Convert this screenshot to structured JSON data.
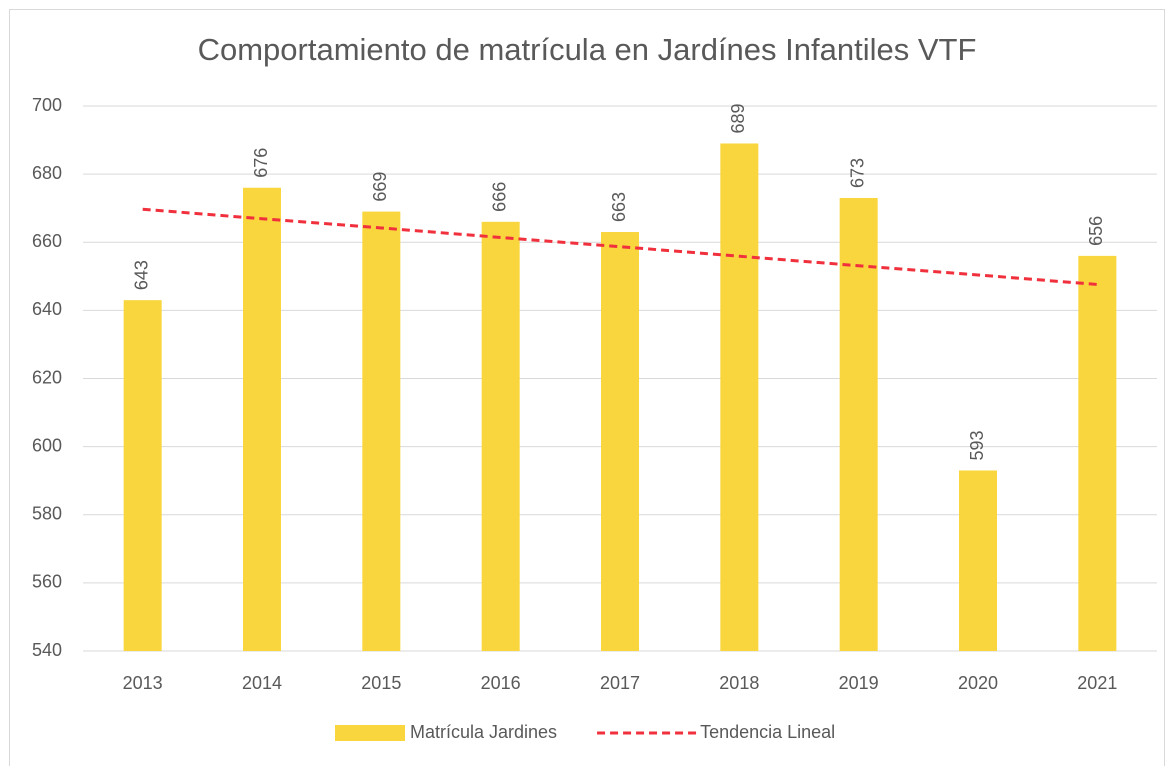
{
  "chart_data": {
    "type": "bar",
    "title": "Comportamiento de matrícula en Jardínes Infantiles VTF",
    "categories": [
      "2013",
      "2014",
      "2015",
      "2016",
      "2017",
      "2018",
      "2019",
      "2020",
      "2021"
    ],
    "series": [
      {
        "name": "Matrícula Jardines",
        "type": "bar",
        "color": "#f9d63d",
        "values": [
          643,
          676,
          669,
          666,
          663,
          689,
          673,
          593,
          656
        ]
      },
      {
        "name": "Tendencia Lineal",
        "type": "line",
        "color": "#f0303c",
        "dashed": true,
        "values": [
          669.7,
          666.9,
          664.2,
          661.4,
          658.7,
          655.9,
          653.1,
          650.4,
          647.6
        ]
      }
    ],
    "ylim": [
      540,
      700
    ],
    "yticks": [
      540,
      560,
      580,
      600,
      620,
      640,
      660,
      680,
      700
    ],
    "grid": true,
    "legend": "bottom"
  }
}
